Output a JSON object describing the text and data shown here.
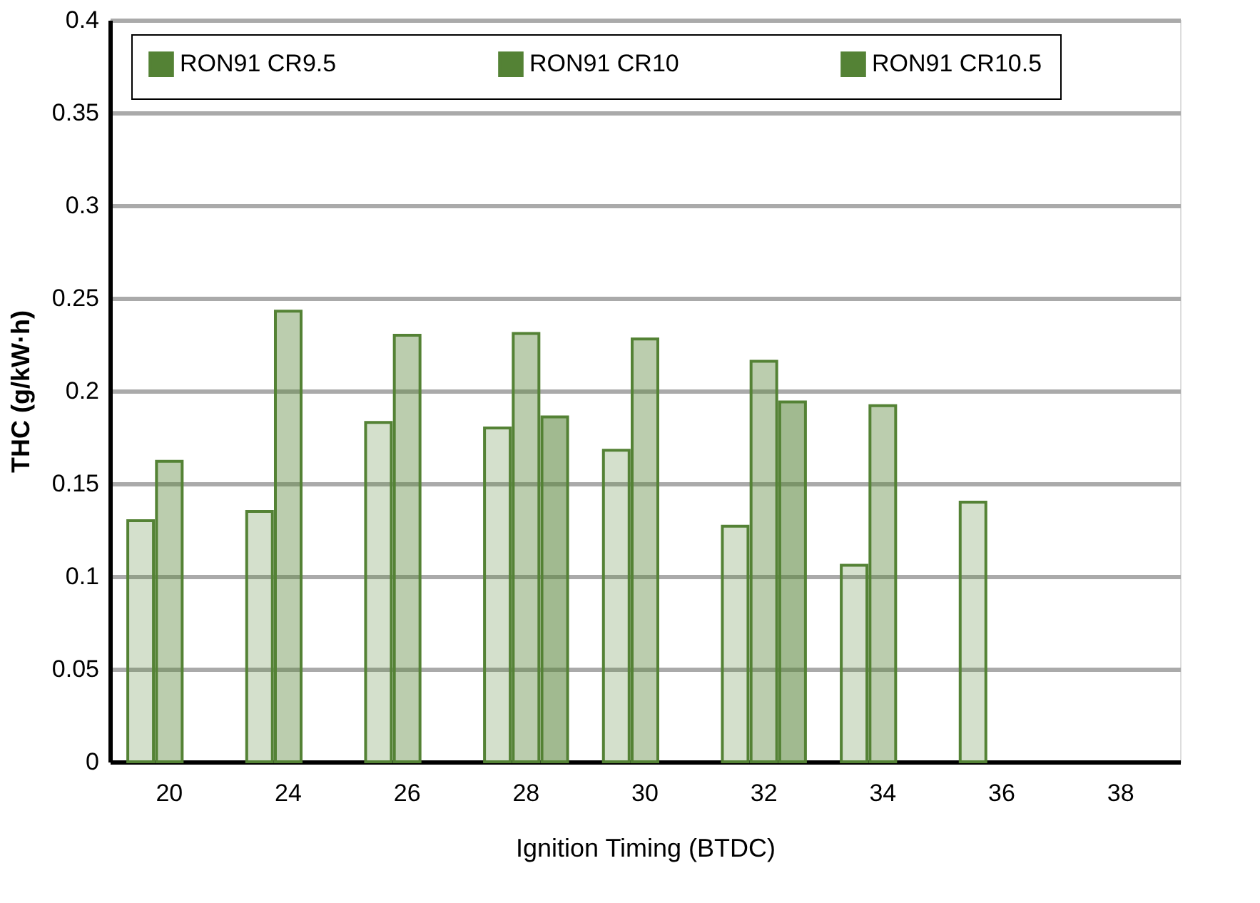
{
  "chart_data": {
    "type": "bar",
    "xlabel": "Ignition Timing (BTDC)",
    "ylabel": "THC (g/kW·h)",
    "categories": [
      "20",
      "24",
      "26",
      "28",
      "30",
      "32",
      "34",
      "36",
      "38"
    ],
    "series": [
      {
        "name": "RON91 CR9.5",
        "color": "#548235",
        "values": [
          0.13,
          0.135,
          0.183,
          0.18,
          0.168,
          0.127,
          0.106,
          0.14,
          null
        ]
      },
      {
        "name": "RON91 CR10",
        "color": "#548235",
        "values": [
          0.162,
          0.243,
          0.23,
          0.231,
          0.228,
          0.216,
          0.192,
          null,
          null
        ]
      },
      {
        "name": "RON91 CR10.5",
        "color": "#548235",
        "values": [
          null,
          null,
          null,
          0.186,
          null,
          0.194,
          null,
          null,
          null
        ]
      }
    ],
    "ylim": [
      0,
      0.4
    ],
    "yticks": [
      0,
      0.05,
      0.1,
      0.15,
      0.2,
      0.25,
      0.3,
      0.35,
      0.4
    ],
    "grid": "y",
    "legend": "top"
  }
}
